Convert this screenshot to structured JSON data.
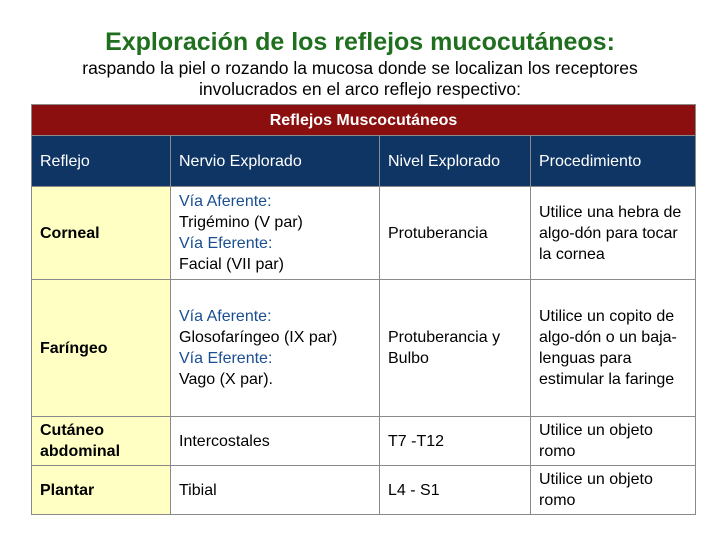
{
  "title": "Exploración de los reflejos mucocutáneos:",
  "subtitle": "raspando la piel o rozando la mucosa donde se localizan los receptores involucrados en el arco reflejo respectivo:",
  "table": {
    "banner": "Reflejos Muscocutáneos",
    "headers": [
      "Reflejo",
      "Nervio Explorado",
      "Nivel Explorado",
      "Procedimiento"
    ],
    "rows": [
      {
        "reflejo": "Corneal",
        "aferente_label": "Vía Aferente:",
        "aferente": "Trigémino (V par)",
        "eferente_label": "Vía Eferente:",
        "eferente": "Facial (VII par)",
        "nivel": "Protuberancia",
        "procedimiento": "Utilice una hebra de algo-dón para tocar la cornea"
      },
      {
        "reflejo": "Faríngeo",
        "aferente_label": "Vía Aferente:",
        "aferente": "Glosofaríngeo (IX par)",
        "eferente_label": "Vía Eferente:",
        "eferente": "Vago (X par).",
        "nivel": "Protuberancia y Bulbo",
        "procedimiento": "Utilice un copito de algo-dón o un baja-lenguas para estimular la faringe"
      },
      {
        "reflejo": "Cutáneo abdominal",
        "nervio": "Intercostales",
        "nivel": "T7 -T12",
        "procedimiento": "Utilice un objeto romo"
      },
      {
        "reflejo": "Plantar",
        "nervio": "Tibial",
        "nivel": "L4 - S1",
        "procedimiento": "Utilice un objeto romo"
      }
    ]
  },
  "colors": {
    "title": "#1f6f1f",
    "banner": "#8b0f0f",
    "header": "#0f3565",
    "name_cell": "#ffffc4",
    "via_label": "#1a4e92"
  }
}
